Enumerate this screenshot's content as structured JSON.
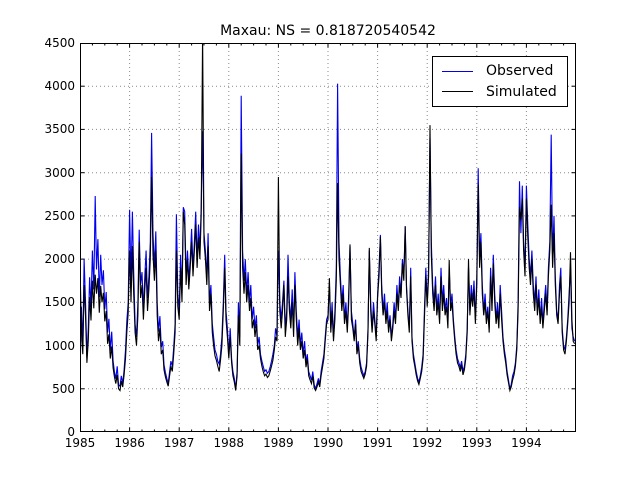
{
  "chart_data": {
    "type": "line",
    "title": "Maxau: NS = 0.818720540542",
    "xlabel": "",
    "ylabel": "",
    "x_start_year": 1985,
    "x_end_year": 1995,
    "points_per_year": 36,
    "ylim": [
      0,
      4500
    ],
    "yticks": [
      0,
      500,
      1000,
      1500,
      2000,
      2500,
      3000,
      3500,
      4000,
      4500
    ],
    "xticks": [
      1985,
      1986,
      1987,
      1988,
      1989,
      1990,
      1991,
      1992,
      1993,
      1994
    ],
    "grid": true,
    "grid_style": "dotted",
    "legend_position": "upper right",
    "series": [
      {
        "name": "Observed",
        "color": "#0000ee",
        "values": [
          630,
          1450,
          980,
          2000,
          1520,
          860,
          1210,
          1790,
          1440,
          2100,
          1650,
          2730,
          1880,
          2230,
          1560,
          2050,
          1700,
          1870,
          1420,
          1620,
          1150,
          1310,
          940,
          1160,
          820,
          700,
          615,
          760,
          545,
          530,
          650,
          560,
          720,
          950,
          1280,
          1500,
          2570,
          1750,
          2550,
          1850,
          1250,
          1100,
          1500,
          2340,
          1700,
          1850,
          1420,
          1800,
          2100,
          1550,
          1800,
          2200,
          3460,
          2300,
          1900,
          2320,
          1500,
          1160,
          1340,
          980,
          1050,
          780,
          690,
          620,
          560,
          700,
          820,
          760,
          980,
          1250,
          2520,
          1600,
          1400,
          2050,
          1600,
          2600,
          2550,
          1800,
          2100,
          1750,
          2000,
          2350,
          1900,
          2200,
          2550,
          2000,
          2400,
          2100,
          2600,
          3480,
          2300,
          2100,
          1800,
          2300,
          1500,
          1700,
          1250,
          1100,
          950,
          900,
          820,
          785,
          900,
          1100,
          1500,
          2050,
          1400,
          1200,
          900,
          1200,
          850,
          700,
          620,
          500,
          700,
          1500,
          1100,
          3890,
          2100,
          1750,
          2000,
          1600,
          1850,
          1500,
          1700,
          1300,
          1450,
          1200,
          1350,
          1000,
          1100,
          900,
          820,
          760,
          700,
          720,
          680,
          700,
          750,
          820,
          900,
          1000,
          1200,
          1100,
          2100,
          1500,
          1300,
          1500,
          1750,
          1200,
          1400,
          2050,
          1500,
          1300,
          1650,
          1200,
          1850,
          1400,
          1100,
          1300,
          1000,
          1150,
          900,
          1050,
          800,
          900,
          700,
          650,
          600,
          700,
          550,
          500,
          560,
          620,
          550,
          700,
          800,
          900,
          1100,
          1300,
          1350,
          1700,
          1200,
          1500,
          1100,
          1400,
          1900,
          4030,
          2200,
          1800,
          1500,
          1700,
          1300,
          1500,
          1200,
          1600,
          2150,
          1400,
          1250,
          1100,
          1300,
          950,
          1050,
          850,
          750,
          700,
          650,
          700,
          800,
          1200,
          2100,
          1500,
          1200,
          1500,
          1300,
          1100,
          1600,
          1900,
          2280,
          1700,
          1400,
          1600,
          1300,
          1500,
          1200,
          1350,
          1100,
          1250,
          1500,
          1300,
          1700,
          1450,
          1800,
          1600,
          2000,
          1800,
          2380,
          1700,
          1400,
          1200,
          1900,
          1100,
          900,
          800,
          700,
          620,
          580,
          650,
          750,
          900,
          1400,
          1900,
          1500,
          1900,
          3400,
          2200,
          1700,
          1500,
          1800,
          1400,
          1600,
          1300,
          1900,
          1500,
          1700,
          1400,
          1550,
          1250,
          1880,
          1450,
          1600,
          1300,
          1100,
          950,
          850,
          800,
          750,
          820,
          700,
          760,
          900,
          1200,
          1900,
          1400,
          1700,
          1500,
          1750,
          1300,
          1800,
          3050,
          2000,
          2300,
          1700,
          1400,
          1600,
          1300,
          1450,
          1200,
          1900,
          1500,
          2050,
          1600,
          1300,
          1500,
          1250,
          1700,
          1400,
          1100,
          950,
          850,
          700,
          600,
          500,
          550,
          650,
          700,
          800,
          1000,
          1500,
          2900,
          2300,
          2850,
          2200,
          1900,
          2850,
          2400,
          2000,
          1800,
          2100,
          1700,
          1500,
          1800,
          1400,
          1650,
          1300,
          1550,
          1250,
          1500,
          1700,
          1400,
          1900,
          2200,
          3440,
          2000,
          2500,
          1800,
          1400,
          1300,
          1700,
          1900,
          1200,
          1000,
          950,
          1100,
          1300,
          1600,
          1900,
          1200,
          1100,
          1050
        ]
      },
      {
        "name": "Simulated",
        "color": "#000000",
        "values": [
          1950,
          1180,
          900,
          1700,
          1350,
          800,
          1060,
          1560,
          1290,
          1750,
          1430,
          1820,
          1600,
          1780,
          1380,
          1690,
          1500,
          1610,
          1280,
          1400,
          1020,
          1130,
          850,
          990,
          740,
          640,
          560,
          660,
          500,
          480,
          590,
          520,
          660,
          850,
          1150,
          1380,
          2100,
          1500,
          2150,
          1600,
          1150,
          1000,
          1350,
          2200,
          1550,
          1700,
          1300,
          1650,
          1900,
          1400,
          1650,
          2000,
          2950,
          2050,
          1750,
          2100,
          1350,
          1050,
          1200,
          900,
          950,
          720,
          640,
          580,
          530,
          650,
          760,
          700,
          900,
          1150,
          2100,
          1450,
          1300,
          1900,
          1500,
          2550,
          2400,
          1700,
          2000,
          1650,
          1900,
          2200,
          1800,
          2100,
          2400,
          1900,
          2250,
          2000,
          2500,
          4600,
          2200,
          2000,
          1700,
          2150,
          1400,
          1600,
          1150,
          1000,
          880,
          830,
          760,
          700,
          830,
          1000,
          1400,
          1900,
          1300,
          1100,
          850,
          1100,
          800,
          650,
          580,
          480,
          650,
          1350,
          1000,
          3220,
          1900,
          1600,
          1850,
          1500,
          1700,
          1400,
          1550,
          1200,
          1300,
          1100,
          1250,
          950,
          1000,
          850,
          760,
          700,
          650,
          670,
          630,
          650,
          700,
          760,
          830,
          950,
          1100,
          1050,
          2950,
          1400,
          1200,
          1400,
          1700,
          1100,
          1300,
          1800,
          1400,
          1200,
          1500,
          1100,
          1700,
          1300,
          1000,
          1200,
          950,
          1050,
          850,
          950,
          750,
          850,
          650,
          600,
          560,
          650,
          510,
          480,
          520,
          580,
          520,
          650,
          750,
          850,
          1050,
          1250,
          1300,
          1780,
          1150,
          1400,
          1050,
          1300,
          1750,
          2880,
          2000,
          1700,
          1400,
          1600,
          1250,
          1400,
          1150,
          1500,
          2170,
          1300,
          1200,
          1050,
          1250,
          900,
          1000,
          800,
          700,
          660,
          620,
          670,
          760,
          1150,
          2130,
          1400,
          1150,
          1400,
          1250,
          1050,
          1550,
          1800,
          2260,
          1600,
          1350,
          1500,
          1250,
          1400,
          1150,
          1300,
          1050,
          1200,
          1400,
          1250,
          1600,
          1400,
          1700,
          1550,
          1950,
          1750,
          2380,
          1650,
          1350,
          1150,
          1800,
          1050,
          850,
          760,
          660,
          590,
          550,
          620,
          700,
          850,
          1300,
          1800,
          1450,
          1800,
          3550,
          2050,
          1600,
          1400,
          1700,
          1350,
          1500,
          1250,
          1800,
          1400,
          1600,
          1350,
          1450,
          1200,
          1990,
          1400,
          1500,
          1250,
          1050,
          900,
          800,
          760,
          700,
          780,
          660,
          720,
          850,
          1150,
          2000,
          1350,
          1600,
          1450,
          1650,
          1250,
          1700,
          2860,
          1900,
          2200,
          1600,
          1350,
          1500,
          1250,
          1400,
          1150,
          1800,
          1400,
          1950,
          1500,
          1250,
          1400,
          1200,
          1600,
          1300,
          1050,
          900,
          800,
          660,
          570,
          480,
          520,
          600,
          660,
          760,
          950,
          1400,
          2600,
          2450,
          2700,
          2100,
          1800,
          2700,
          2250,
          1900,
          1700,
          2000,
          1600,
          1400,
          1700,
          1350,
          1550,
          1250,
          1450,
          1200,
          1400,
          1600,
          1350,
          1800,
          2100,
          2630,
          1900,
          2300,
          1700,
          1350,
          1250,
          1600,
          1800,
          1150,
          950,
          900,
          1050,
          1250,
          1500,
          2080,
          1300,
          1050,
          1020
        ]
      }
    ]
  }
}
